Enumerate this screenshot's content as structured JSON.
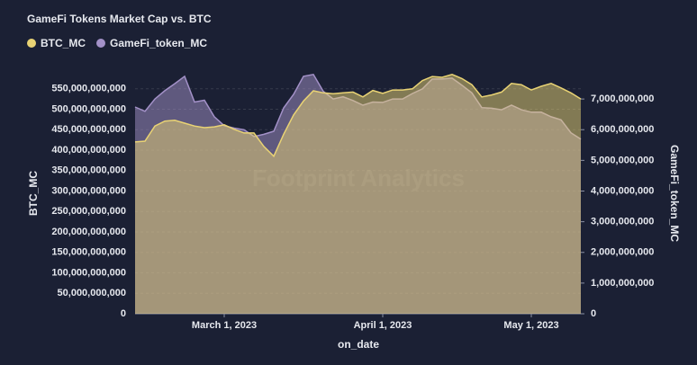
{
  "chart_data": {
    "type": "area",
    "title": "GameFi Tokens Market Cap vs. BTC",
    "watermark": "Footprint Analytics",
    "x_label": "on_date",
    "y_label": "BTC_MC",
    "y2_label": "GameFi_token_MC",
    "categories": [
      null,
      null,
      null,
      null,
      null,
      null,
      null,
      null,
      null,
      "March 1, 2023",
      null,
      null,
      null,
      null,
      null,
      null,
      null,
      null,
      null,
      null,
      null,
      null,
      null,
      null,
      null,
      "April 1, 2023",
      null,
      null,
      null,
      null,
      null,
      null,
      null,
      null,
      null,
      null,
      null,
      null,
      null,
      null,
      "May 1, 2023",
      null,
      null,
      null,
      null,
      null
    ],
    "series": [
      {
        "name": "BTC_MC",
        "color": "#e9d374",
        "values": [
          420000000000,
          422000000000,
          459000000000,
          471000000000,
          473000000000,
          466000000000,
          459000000000,
          455000000000,
          457000000000,
          462000000000,
          451000000000,
          442000000000,
          442000000000,
          409000000000,
          385000000000,
          439000000000,
          486000000000,
          520000000000,
          545000000000,
          540000000000,
          538000000000,
          540000000000,
          542000000000,
          530000000000,
          546000000000,
          539000000000,
          547000000000,
          547000000000,
          550000000000,
          570000000000,
          580000000000,
          578000000000,
          585000000000,
          575000000000,
          560000000000,
          530000000000,
          535000000000,
          542000000000,
          563000000000,
          560000000000,
          547000000000,
          556000000000,
          563000000000,
          552000000000,
          540000000000,
          525000000000
        ]
      },
      {
        "name": "GameFi_token_MC",
        "color": "#a391c8",
        "axis": "y2",
        "values": [
          6740000000,
          6600000000,
          7000000000,
          7270000000,
          7500000000,
          7740000000,
          6900000000,
          6960000000,
          6420000000,
          6130000000,
          6050000000,
          6000000000,
          5780000000,
          5850000000,
          5950000000,
          6710000000,
          7150000000,
          7740000000,
          7800000000,
          7250000000,
          7000000000,
          7070000000,
          6950000000,
          6800000000,
          6900000000,
          6890000000,
          7000000000,
          7000000000,
          7180000000,
          7330000000,
          7650000000,
          7650000000,
          7680000000,
          7450000000,
          7200000000,
          6720000000,
          6700000000,
          6650000000,
          6800000000,
          6650000000,
          6570000000,
          6570000000,
          6420000000,
          6320000000,
          5900000000,
          5690000000
        ]
      }
    ],
    "ylim": [
      0,
      600000000000
    ],
    "yticks": [
      0,
      {
        "value": 50000000000,
        "label": "50,000,000,000"
      },
      {
        "value": 100000000000,
        "label": "100,000,000,000"
      },
      {
        "value": 150000000000,
        "label": "150,000,000,000"
      },
      {
        "value": 200000000000,
        "label": "200,000,000,000"
      },
      {
        "value": 250000000000,
        "label": "250,000,000,000"
      },
      {
        "value": 300000000000,
        "label": "300,000,000,000"
      },
      {
        "value": 350000000000,
        "label": "350,000,000,000"
      },
      {
        "value": 400000000000,
        "label": "400,000,000,000"
      },
      {
        "value": 450000000000,
        "label": "450,000,000,000"
      },
      {
        "value": 500000000000,
        "label": "500,000,000,000"
      },
      {
        "value": 550000000000,
        "label": "550,000,000,000"
      }
    ],
    "y2lim": [
      0,
      8000000000
    ],
    "y2ticks": [
      0,
      {
        "value": 1000000000,
        "label": "1,000,000,000"
      },
      {
        "value": 2000000000,
        "label": "2,000,000,000"
      },
      {
        "value": 3000000000,
        "label": "3,000,000,000"
      },
      {
        "value": 4000000000,
        "label": "4,000,000,000"
      },
      {
        "value": 5000000000,
        "label": "5,000,000,000"
      },
      {
        "value": 6000000000,
        "label": "6,000,000,000"
      },
      {
        "value": 7000000000,
        "label": "7,000,000,000"
      }
    ],
    "grid": true
  }
}
